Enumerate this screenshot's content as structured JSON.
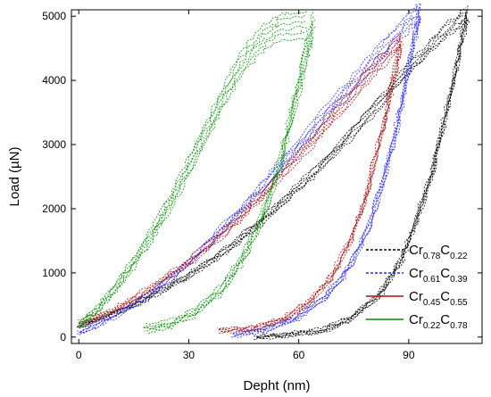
{
  "chart_data": {
    "type": "line",
    "title": "",
    "xlabel": "Depht (nm)",
    "ylabel": "Load (µN)",
    "xlim": [
      -2,
      110
    ],
    "ylim": [
      -100,
      5100
    ],
    "xticks": [
      0,
      30,
      60,
      90
    ],
    "yticks": [
      0,
      1000,
      2000,
      3000,
      4000,
      5000
    ],
    "grid": false,
    "legend_position": "bottom-right",
    "series": [
      {
        "name_main": "Cr",
        "name_sub1": "0.78",
        "name_mid": "C",
        "name_sub2": "0.22",
        "color": "#000000",
        "loading": [
          [
            0,
            170
          ],
          [
            10,
            380
          ],
          [
            20,
            640
          ],
          [
            30,
            960
          ],
          [
            40,
            1350
          ],
          [
            50,
            1810
          ],
          [
            60,
            2330
          ],
          [
            70,
            2900
          ],
          [
            80,
            3520
          ],
          [
            90,
            4190
          ],
          [
            100,
            4760
          ],
          [
            106,
            5030
          ]
        ],
        "unloading": [
          [
            106,
            5030
          ],
          [
            104,
            4500
          ],
          [
            102,
            3900
          ],
          [
            99,
            3200
          ],
          [
            96,
            2500
          ],
          [
            92,
            1800
          ],
          [
            88,
            1200
          ],
          [
            82,
            650
          ],
          [
            74,
            280
          ],
          [
            66,
            100
          ],
          [
            56,
            30
          ],
          [
            48,
            0
          ]
        ],
        "band": 90
      },
      {
        "name_main": "Cr",
        "name_sub1": "0.61",
        "name_mid": "C",
        "name_sub2": "0.39",
        "color": "#2a2aff",
        "loading": [
          [
            0,
            60
          ],
          [
            10,
            320
          ],
          [
            20,
            700
          ],
          [
            30,
            1170
          ],
          [
            40,
            1720
          ],
          [
            50,
            2330
          ],
          [
            60,
            2980
          ],
          [
            70,
            3650
          ],
          [
            80,
            4280
          ],
          [
            88,
            4790
          ],
          [
            93,
            5050
          ]
        ],
        "unloading": [
          [
            93,
            5050
          ],
          [
            91,
            4500
          ],
          [
            89,
            3900
          ],
          [
            86,
            3100
          ],
          [
            83,
            2400
          ],
          [
            79,
            1700
          ],
          [
            74,
            1100
          ],
          [
            67,
            600
          ],
          [
            59,
            280
          ],
          [
            50,
            110
          ],
          [
            42,
            30
          ]
        ],
        "band": 110
      },
      {
        "name_main": "Cr",
        "name_sub1": "0.45",
        "name_mid": "C",
        "name_sub2": "0.55",
        "color": "#aa1111",
        "loading": [
          [
            0,
            200
          ],
          [
            10,
            430
          ],
          [
            20,
            760
          ],
          [
            30,
            1170
          ],
          [
            40,
            1650
          ],
          [
            50,
            2200
          ],
          [
            60,
            2820
          ],
          [
            70,
            3480
          ],
          [
            80,
            4150
          ],
          [
            88,
            4620
          ]
        ],
        "unloading": [
          [
            88,
            4620
          ],
          [
            86,
            4100
          ],
          [
            84,
            3500
          ],
          [
            81,
            2800
          ],
          [
            78,
            2100
          ],
          [
            74,
            1500
          ],
          [
            69,
            950
          ],
          [
            63,
            550
          ],
          [
            56,
            280
          ],
          [
            48,
            140
          ],
          [
            38,
            100
          ]
        ],
        "band": 100
      },
      {
        "name_main": "Cr",
        "name_sub1": "0.22",
        "name_mid": "C",
        "name_sub2": "0.78",
        "color": "#008f00",
        "loading": [
          [
            0,
            190
          ],
          [
            5,
            420
          ],
          [
            10,
            760
          ],
          [
            15,
            1150
          ],
          [
            20,
            1600
          ],
          [
            25,
            2100
          ],
          [
            30,
            2650
          ],
          [
            35,
            3230
          ],
          [
            40,
            3800
          ],
          [
            45,
            4300
          ],
          [
            50,
            4650
          ],
          [
            55,
            4840
          ],
          [
            62,
            4870
          ]
        ],
        "unloading": [
          [
            64,
            4860
          ],
          [
            62,
            4450
          ],
          [
            60,
            3900
          ],
          [
            57,
            3200
          ],
          [
            54,
            2550
          ],
          [
            50,
            1850
          ],
          [
            45,
            1250
          ],
          [
            39,
            750
          ],
          [
            32,
            400
          ],
          [
            25,
            200
          ],
          [
            18,
            120
          ]
        ],
        "band": 160
      }
    ]
  }
}
